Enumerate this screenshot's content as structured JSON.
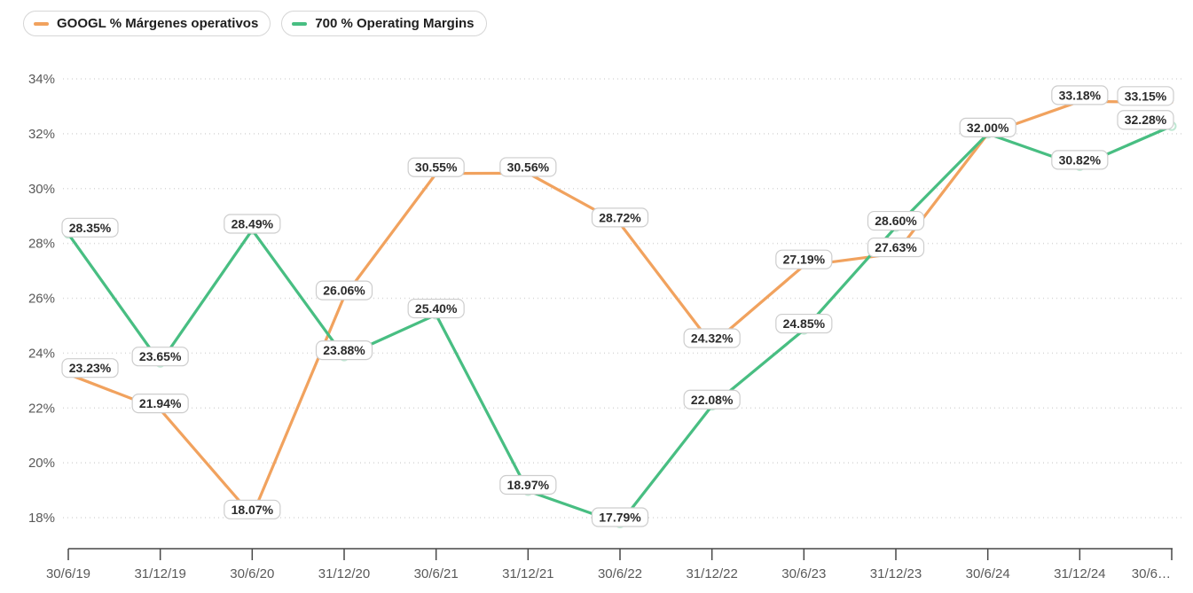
{
  "legend": {
    "items": [
      {
        "id": "googl",
        "label": "GOOGL % Márgenes operativos",
        "color": "#f1a25e"
      },
      {
        "id": "700",
        "label": "700 % Operating Margins",
        "color": "#48be82"
      }
    ]
  },
  "chart_data": {
    "type": "line",
    "title": "",
    "xlabel": "",
    "ylabel": "",
    "x_categories": [
      "30/6/19",
      "31/12/19",
      "30/6/20",
      "31/12/20",
      "30/6/21",
      "31/12/21",
      "30/6/22",
      "31/12/22",
      "30/6/23",
      "31/12/23",
      "30/6/24",
      "31/12/24",
      "30/6…"
    ],
    "y_ticks": [
      "34%",
      "32%",
      "30%",
      "28%",
      "26%",
      "24%",
      "22%",
      "20%",
      "18%"
    ],
    "ylim": [
      18,
      34
    ],
    "grid": "horizontal-dotted",
    "legend_position": "top-left",
    "colors": {
      "grid": "#d8d8d8",
      "axis": "#474747",
      "tick_text": "#595959",
      "label_text": "#2b2b2b",
      "label_border": "#cdcdcd",
      "label_bg": "#ffffff"
    },
    "series": [
      {
        "name": "GOOGL % Márgenes operativos",
        "color": "#f1a25e",
        "markers": false,
        "values": [
          23.23,
          21.94,
          18.07,
          26.06,
          30.55,
          30.56,
          28.72,
          24.32,
          27.19,
          27.63,
          32.0,
          33.18,
          33.15
        ],
        "labels": [
          "23.23%",
          "21.94%",
          "18.07%",
          "26.06%",
          "30.55%",
          "30.56%",
          "28.72%",
          "24.32%",
          "27.19%",
          "27.63%",
          null,
          "33.18%",
          "33.15%"
        ]
      },
      {
        "name": "700 % Operating Margins",
        "color": "#48be82",
        "markers": true,
        "values": [
          28.35,
          23.65,
          28.49,
          23.88,
          25.4,
          18.97,
          17.79,
          22.08,
          24.85,
          28.6,
          32.0,
          30.82,
          32.28
        ],
        "labels": [
          "28.35%",
          "23.65%",
          "28.49%",
          "23.88%",
          "25.40%",
          "18.97%",
          "17.79%",
          "22.08%",
          "24.85%",
          "28.60%",
          "32.00%",
          "30.82%",
          "32.28%"
        ]
      }
    ]
  }
}
